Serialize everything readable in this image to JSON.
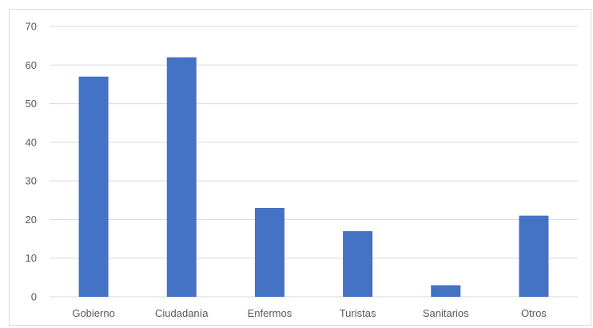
{
  "chart_data": {
    "type": "bar",
    "title": "",
    "xlabel": "",
    "ylabel": "",
    "categories": [
      "Gobierno",
      "Ciudadanía",
      "Enfermos",
      "Turistas",
      "Sanitarios",
      "Otros"
    ],
    "values": [
      57,
      62,
      23,
      17,
      3,
      21
    ],
    "ylim": [
      0,
      70
    ],
    "yticks": [
      0,
      10,
      20,
      30,
      40,
      50,
      60,
      70
    ],
    "grid": true,
    "legend": "none",
    "bar_color": "#4472c4",
    "grid_color": "#d9d9d9",
    "text_color": "#595959"
  }
}
